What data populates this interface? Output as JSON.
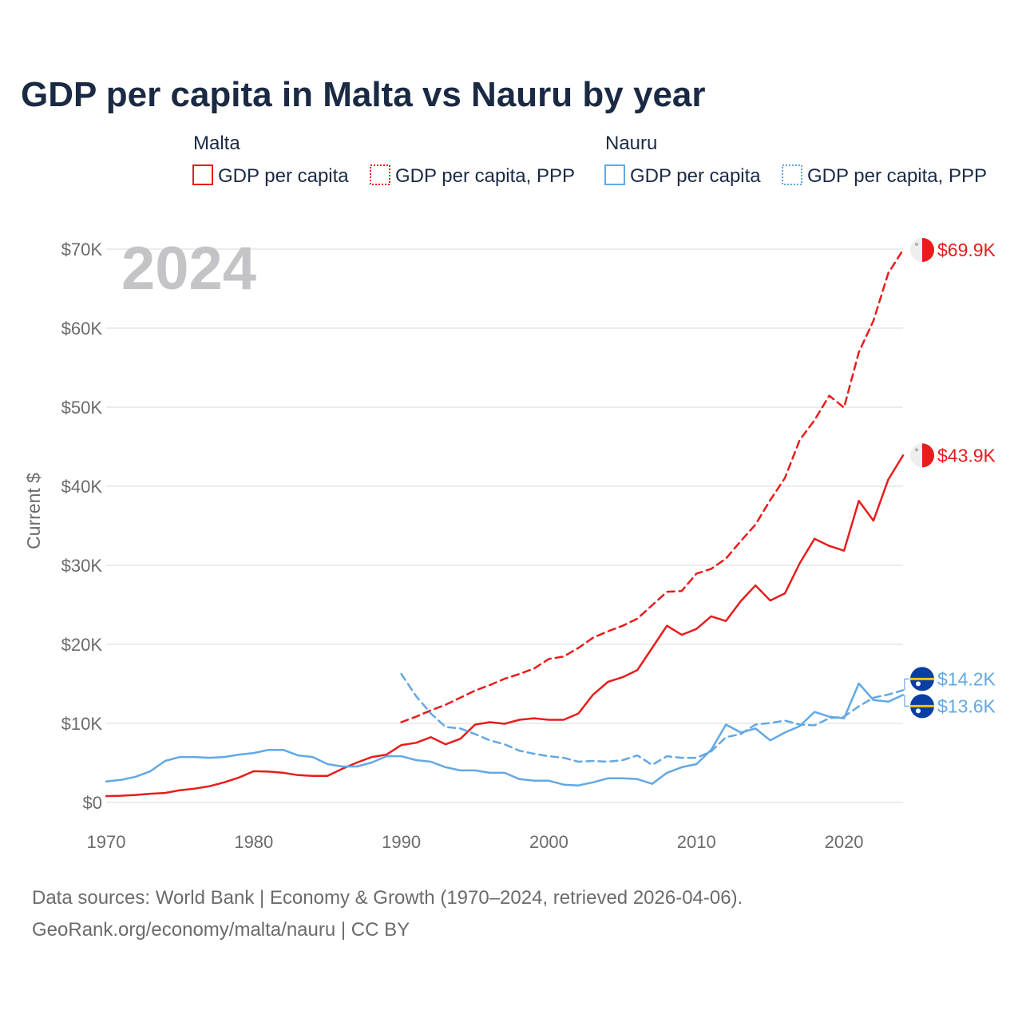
{
  "page_title": "GDP per capita in Malta vs Nauru by year",
  "year_label": "2024",
  "legend": {
    "groups": [
      {
        "name": "Malta",
        "items": [
          {
            "label": "GDP per capita",
            "style": "solid"
          },
          {
            "label": "GDP per capita, PPP",
            "style": "dotted"
          }
        ]
      },
      {
        "name": "Nauru",
        "items": [
          {
            "label": "GDP per capita",
            "style": "solid"
          },
          {
            "label": "GDP per capita, PPP",
            "style": "dotted"
          }
        ]
      }
    ]
  },
  "colors": {
    "malta": "#e81c1c",
    "nauru": "#63a8e4",
    "grid": "#e6e6e6",
    "text": "#1b2a44"
  },
  "source": {
    "line1": "Data sources: World Bank | Economy & Growth (1970–2024, retrieved 2026-04-06).",
    "line2": "GeoRank.org/economy/malta/nauru | CC BY"
  },
  "chart_data": {
    "type": "line",
    "title": "GDP per capita in Malta vs Nauru by year",
    "xlabel": "",
    "ylabel": "Current $",
    "xlim": [
      1970,
      2024
    ],
    "ylim": [
      0,
      70000
    ],
    "x_ticks": [
      1970,
      1980,
      1990,
      2000,
      2010,
      2020
    ],
    "x_tick_labels": [
      "1970",
      "1980",
      "1990",
      "2000",
      "2010",
      "2020"
    ],
    "y_ticks": [
      0,
      10000,
      20000,
      30000,
      40000,
      50000,
      60000,
      70000
    ],
    "y_tick_labels": [
      "$0",
      "$10K",
      "$20K",
      "$30K",
      "$40K",
      "$50K",
      "$60K",
      "$70K"
    ],
    "grid": true,
    "series": [
      {
        "name": "Malta GDP per capita",
        "country": "Malta",
        "color": "#e81c1c",
        "dash": "solid",
        "end_label": "$43.9K",
        "x": [
          1970,
          1971,
          1972,
          1973,
          1974,
          1975,
          1976,
          1977,
          1978,
          1979,
          1980,
          1981,
          1982,
          1983,
          1984,
          1985,
          1986,
          1987,
          1988,
          1989,
          1990,
          1991,
          1992,
          1993,
          1994,
          1995,
          1996,
          1997,
          1998,
          1999,
          2000,
          2001,
          2002,
          2003,
          2004,
          2005,
          2006,
          2007,
          2008,
          2009,
          2010,
          2011,
          2012,
          2013,
          2014,
          2015,
          2016,
          2017,
          2018,
          2019,
          2020,
          2021,
          2022,
          2023,
          2024
        ],
        "y": [
          800,
          850,
          950,
          1100,
          1200,
          1550,
          1750,
          2050,
          2550,
          3150,
          3950,
          3900,
          3750,
          3450,
          3350,
          3350,
          4250,
          5050,
          5750,
          6050,
          7250,
          7550,
          8250,
          7350,
          8050,
          9850,
          10150,
          9950,
          10450,
          10650,
          10450,
          10450,
          11250,
          13650,
          15250,
          15850,
          16750,
          19550,
          22350,
          21200,
          21950,
          23550,
          22950,
          25450,
          27450,
          25550,
          26450,
          30250,
          33350,
          32450,
          31850,
          38150,
          35650,
          40850,
          43900
        ]
      },
      {
        "name": "Malta GDP per capita, PPP",
        "country": "Malta",
        "color": "#e81c1c",
        "dash": "dashed",
        "end_label": "$69.9K",
        "x": [
          1990,
          1991,
          1992,
          1993,
          1994,
          1995,
          1996,
          1997,
          1998,
          1999,
          2000,
          2001,
          2002,
          2003,
          2004,
          2005,
          2006,
          2007,
          2008,
          2009,
          2010,
          2011,
          2012,
          2013,
          2014,
          2015,
          2016,
          2017,
          2018,
          2019,
          2020,
          2021,
          2022,
          2023,
          2024
        ],
        "y": [
          10150,
          10850,
          11650,
          12350,
          13250,
          14150,
          14850,
          15650,
          16250,
          16950,
          18150,
          18450,
          19550,
          20850,
          21650,
          22350,
          23250,
          24950,
          26650,
          26750,
          28950,
          29550,
          30850,
          33050,
          35150,
          38250,
          41050,
          45850,
          48350,
          51450,
          49950,
          56950,
          60950,
          66950,
          69900
        ]
      },
      {
        "name": "Nauru GDP per capita",
        "country": "Nauru",
        "color": "#63a8e4",
        "dash": "solid",
        "end_label": "$13.6K",
        "x": [
          1970,
          1971,
          1972,
          1973,
          1974,
          1975,
          1976,
          1977,
          1978,
          1979,
          1980,
          1981,
          1982,
          1983,
          1984,
          1985,
          1986,
          1987,
          1988,
          1989,
          1990,
          1991,
          1992,
          1993,
          1994,
          1995,
          1996,
          1997,
          1998,
          1999,
          2000,
          2001,
          2002,
          2003,
          2004,
          2005,
          2006,
          2007,
          2008,
          2009,
          2010,
          2011,
          2012,
          2013,
          2014,
          2015,
          2016,
          2017,
          2018,
          2019,
          2020,
          2021,
          2022,
          2023,
          2024
        ],
        "y": [
          2650,
          2850,
          3250,
          3950,
          5250,
          5750,
          5750,
          5650,
          5750,
          6050,
          6250,
          6650,
          6650,
          5950,
          5750,
          4850,
          4550,
          4550,
          5050,
          5850,
          5850,
          5350,
          5150,
          4450,
          4050,
          4050,
          3750,
          3750,
          2950,
          2750,
          2750,
          2250,
          2150,
          2550,
          3050,
          3050,
          2950,
          2350,
          3750,
          4450,
          4850,
          6650,
          9850,
          8850,
          9350,
          7850,
          8850,
          9650,
          11450,
          10850,
          10650,
          15050,
          12950,
          12750,
          13600
        ]
      },
      {
        "name": "Nauru GDP per capita, PPP",
        "country": "Nauru",
        "color": "#63a8e4",
        "dash": "dashed",
        "end_label": "$14.2K",
        "x": [
          1990,
          1991,
          1992,
          1993,
          1994,
          1995,
          1996,
          1997,
          1998,
          1999,
          2000,
          2001,
          2002,
          2003,
          2004,
          2005,
          2006,
          2007,
          2008,
          2009,
          2010,
          2011,
          2012,
          2013,
          2014,
          2015,
          2016,
          2017,
          2018,
          2019,
          2020,
          2021,
          2022,
          2023,
          2024
        ],
        "y": [
          16250,
          13450,
          11250,
          9550,
          9350,
          8650,
          7850,
          7350,
          6550,
          6150,
          5850,
          5650,
          5150,
          5250,
          5150,
          5350,
          5950,
          4750,
          5850,
          5650,
          5650,
          6450,
          8250,
          8650,
          9850,
          10050,
          10350,
          9850,
          9750,
          10650,
          10850,
          12150,
          13250,
          13650,
          14200
        ]
      }
    ]
  }
}
